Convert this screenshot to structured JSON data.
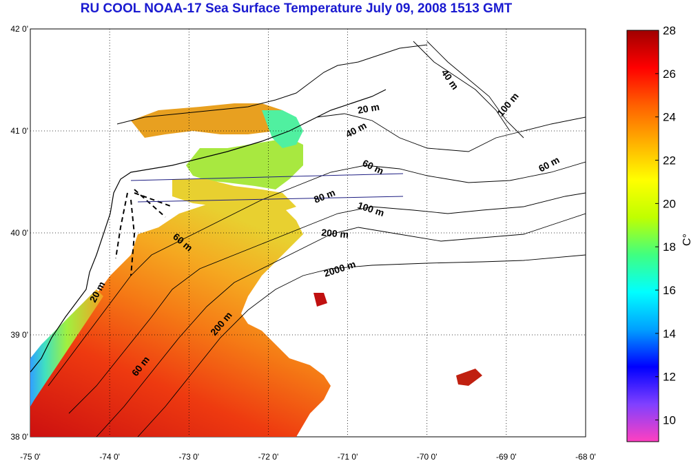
{
  "title": "RU COOL  NOAA-17 Sea Surface Temperature July 09, 2008 1513 GMT",
  "axes": {
    "x_ticks": [
      "-75 0'",
      "-74 0'",
      "-73 0'",
      "-72 0'",
      "-71 0'",
      "-70 0'",
      "-69 0'",
      "-68 0'"
    ],
    "y_ticks": [
      "42 0'",
      "41 0'",
      "40 0'",
      "39 0'",
      "38 0'"
    ],
    "grid": "dotted"
  },
  "colorbar": {
    "label": "C°",
    "ticks": [
      "28",
      "26",
      "24",
      "22",
      "20",
      "18",
      "16",
      "14",
      "12",
      "10"
    ],
    "colors": [
      "#ff40c0",
      "#8040ff",
      "#0000ff",
      "#00a0ff",
      "#00ffff",
      "#40ff80",
      "#c0ff00",
      "#ffff00",
      "#ffb000",
      "#ff6000",
      "#ff0000",
      "#a00000"
    ]
  },
  "contour_labels": {
    "c20a": "20 m",
    "c20b": "20 m",
    "c40a": "40 m",
    "c40b": "40 m",
    "c60a": "60 m",
    "c60b": "60 m",
    "c60c": "60 m",
    "c60d": "60 m",
    "c80": "80 m",
    "c100a": "100 m",
    "c100b": "100 m",
    "c200a": "200 m",
    "c200b": "200 m",
    "c2000": "2000 m"
  }
}
